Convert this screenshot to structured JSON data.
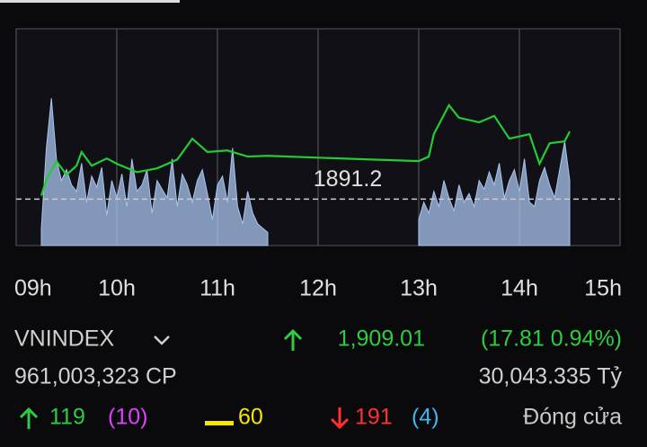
{
  "chart_data": {
    "type": "line",
    "xticks": [
      {
        "value": 9,
        "label": "09h"
      },
      {
        "value": 10,
        "label": "10h"
      },
      {
        "value": 11,
        "label": "11h"
      },
      {
        "value": 12,
        "label": "12h"
      },
      {
        "value": 13,
        "label": "13h"
      },
      {
        "value": 14,
        "label": "14h"
      },
      {
        "value": 15,
        "label": "15h"
      }
    ],
    "xlim": [
      9,
      15
    ],
    "ylim": [
      1879,
      1936
    ],
    "y2lim": [
      0,
      100
    ],
    "reference": 1891.2,
    "series": [
      {
        "color": "#22cc33",
        "x": [
          9.25,
          9.3,
          9.4,
          9.5,
          9.6,
          9.65,
          9.75,
          9.9,
          10.0,
          10.2,
          10.4,
          10.6,
          10.75,
          10.9,
          11.1,
          11.3,
          11.5,
          12.0,
          13.0,
          13.1,
          13.15,
          13.3,
          13.4,
          13.6,
          13.75,
          13.9,
          14.1,
          14.2,
          14.3,
          14.45,
          14.5
        ],
        "values": [
          1892.1,
          1896.4,
          1901.2,
          1897.6,
          1900,
          1903.6,
          1900,
          1901.9,
          1900.5,
          1898.3,
          1899.3,
          1901.6,
          1907.1,
          1903.6,
          1904,
          1902.4,
          1902.6,
          1902.1,
          1901.2,
          1902.4,
          1908.3,
          1915.9,
          1912.6,
          1911.4,
          1913.1,
          1907.1,
          1908.3,
          1900.5,
          1905.9,
          1906.4,
          1909.0
        ]
      },
      {
        "color": "#a9c4ef",
        "axis": "y2",
        "x": [
          9.25,
          9.3,
          9.35,
          9.4,
          9.45,
          9.5,
          9.55,
          9.6,
          9.65,
          9.7,
          9.75,
          9.8,
          9.85,
          9.9,
          9.95,
          10.0,
          10.05,
          10.1,
          10.15,
          10.2,
          10.25,
          10.3,
          10.35,
          10.4,
          10.45,
          10.5,
          10.55,
          10.6,
          10.65,
          10.7,
          10.75,
          10.8,
          10.85,
          10.9,
          10.95,
          11.0,
          11.05,
          11.1,
          11.15,
          11.2,
          11.25,
          11.3,
          11.35,
          11.4,
          11.45,
          11.5,
          12.0,
          13.0,
          13.05,
          13.1,
          13.15,
          13.2,
          13.25,
          13.3,
          13.35,
          13.4,
          13.45,
          13.5,
          13.55,
          13.6,
          13.65,
          13.7,
          13.75,
          13.8,
          13.85,
          13.9,
          13.95,
          14.0,
          14.05,
          14.1,
          14.15,
          14.2,
          14.25,
          14.3,
          14.35,
          14.4,
          14.45,
          14.5
        ],
        "values": [
          8,
          45,
          68,
          40,
          30,
          35,
          28,
          25,
          38,
          20,
          32,
          27,
          36,
          14,
          30,
          22,
          33,
          18,
          40,
          25,
          28,
          35,
          15,
          30,
          26,
          22,
          40,
          18,
          33,
          28,
          20,
          30,
          35,
          24,
          12,
          28,
          32,
          20,
          45,
          18,
          10,
          25,
          15,
          10,
          8,
          6,
          null,
          12,
          20,
          15,
          25,
          18,
          30,
          22,
          16,
          28,
          20,
          24,
          18,
          30,
          26,
          34,
          28,
          38,
          22,
          30,
          35,
          25,
          40,
          20,
          18,
          30,
          36,
          28,
          22,
          35,
          48,
          30
        ]
      }
    ]
  },
  "footer": {
    "index": "VNINDEX",
    "price": "1,909.01",
    "change": "(17.81 0.94%)",
    "volume": "961,003,323 CP",
    "turnover": "30,043.335 Tỷ",
    "up": "119",
    "ceiling": "(10)",
    "flat": "60",
    "down": "191",
    "floor": "(4)",
    "status": "Đóng cửa"
  }
}
